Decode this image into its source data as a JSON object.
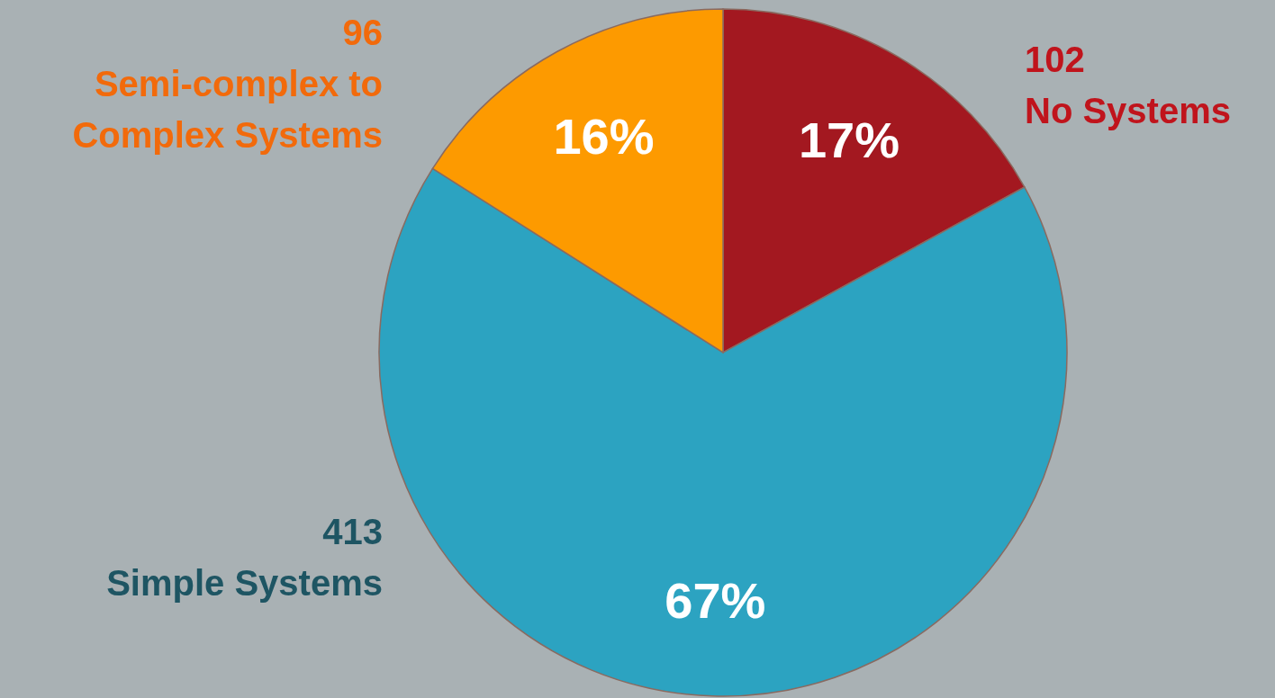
{
  "chart_data": {
    "type": "pie",
    "categories": [
      "No Systems",
      "Simple Systems",
      "Semi-complex to Complex Systems"
    ],
    "values": [
      17,
      67,
      16
    ],
    "colors": [
      "#a31820",
      "#2ca3c1",
      "#fd9a00"
    ],
    "value_labels": [
      "17%",
      "67%",
      "16%"
    ],
    "annotations": [
      "102",
      "413",
      "96"
    ]
  }
}
